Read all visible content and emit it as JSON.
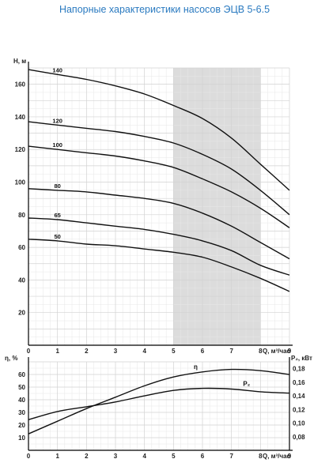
{
  "page": {
    "title": "Напорные характеристики насосов ЭЦВ 5-6.5"
  },
  "chart_data": [
    {
      "type": "line",
      "ylabel": "H, м",
      "xlabel": "Q, м³/час",
      "xlim": [
        0,
        9
      ],
      "ylim": [
        0,
        170
      ],
      "x_ticks": [
        0,
        1,
        2,
        3,
        4,
        5,
        6,
        7,
        8,
        9
      ],
      "y_ticks": [
        20,
        40,
        60,
        80,
        100,
        120,
        140,
        160
      ],
      "grid": true,
      "shaded_range": [
        5,
        8
      ],
      "series": [
        {
          "name": "140",
          "x": [
            0,
            1,
            2,
            3,
            4,
            5,
            6,
            7,
            8,
            9
          ],
          "y": [
            169,
            166,
            163,
            159,
            154,
            147,
            139,
            127,
            111,
            95
          ]
        },
        {
          "name": "120",
          "x": [
            0,
            1,
            2,
            3,
            4,
            5,
            6,
            7,
            8,
            9
          ],
          "y": [
            137,
            135,
            133,
            131,
            128,
            124,
            117,
            108,
            95,
            80
          ]
        },
        {
          "name": "100",
          "x": [
            0,
            1,
            2,
            3,
            4,
            5,
            6,
            7,
            8,
            9
          ],
          "y": [
            122,
            120,
            118,
            116,
            113,
            109,
            102,
            94,
            84,
            72
          ]
        },
        {
          "name": "80",
          "x": [
            0,
            1,
            2,
            3,
            4,
            5,
            6,
            7,
            8,
            9
          ],
          "y": [
            96,
            95,
            94,
            92,
            90,
            87,
            81,
            73,
            63,
            53
          ]
        },
        {
          "name": "65",
          "x": [
            0,
            1,
            2,
            3,
            4,
            5,
            6,
            7,
            8,
            9
          ],
          "y": [
            78,
            77,
            75,
            73,
            71,
            68,
            64,
            58,
            49,
            43
          ]
        },
        {
          "name": "50",
          "x": [
            0,
            1,
            2,
            3,
            4,
            5,
            6,
            7,
            8,
            9
          ],
          "y": [
            65,
            64,
            62,
            61,
            59,
            57,
            54,
            48,
            41,
            33
          ]
        }
      ]
    },
    {
      "type": "line",
      "ylabel": "η, %",
      "y2label": "P₂, кВт",
      "xlabel": "Q, м³/час",
      "xlim": [
        0,
        9
      ],
      "ylim": [
        0,
        70
      ],
      "y2lim": [
        0.06,
        0.19
      ],
      "x_ticks": [
        0,
        1,
        2,
        3,
        4,
        5,
        6,
        7,
        8,
        9
      ],
      "y_ticks": [
        10,
        20,
        30,
        40,
        50,
        60
      ],
      "y2_ticks": [
        "0,08",
        "0,10",
        "0,12",
        "0,14",
        "0,16",
        "0,18"
      ],
      "y2_tick_values": [
        0.08,
        0.1,
        0.12,
        0.14,
        0.16,
        0.18
      ],
      "grid": true,
      "series": [
        {
          "name": "η",
          "axis": "left",
          "x": [
            0,
            1,
            2,
            3,
            4,
            5,
            6,
            7,
            8,
            9
          ],
          "y": [
            13,
            23,
            33,
            42,
            51,
            58,
            62,
            64,
            63,
            60
          ]
        },
        {
          "name": "P₂",
          "axis": "right",
          "x": [
            0,
            1,
            2,
            3,
            4,
            5,
            6,
            7,
            8,
            9
          ],
          "y": [
            0.105,
            0.117,
            0.124,
            0.131,
            0.14,
            0.148,
            0.151,
            0.15,
            0.146,
            0.144
          ]
        }
      ]
    }
  ]
}
